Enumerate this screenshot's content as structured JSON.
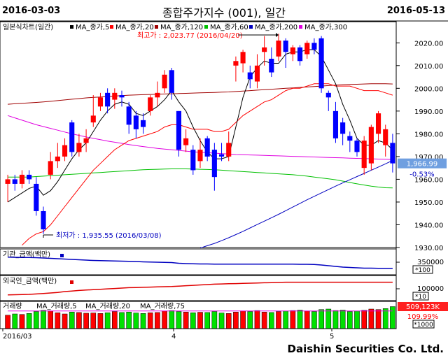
{
  "header": {
    "start_date": "2016-03-03",
    "end_date": "2016-05-13",
    "title": "종합주가지수 (001), 일간"
  },
  "legend": {
    "chart_name": "일본식차트(일간)",
    "items": [
      {
        "label": "MA_종가,5",
        "color": "#000000"
      },
      {
        "label": "MA_종가,20",
        "color": "#ff0000"
      },
      {
        "label": "MA_종가,120",
        "color": "#a00000"
      },
      {
        "label": "MA_종가,60",
        "color": "#00c000"
      },
      {
        "label": "MA_종가,200",
        "color": "#0000c0"
      },
      {
        "label": "MA_종가,300",
        "color": "#e000e0"
      }
    ]
  },
  "annotations": {
    "high": "최고가 : 2,023.77 (2016/04/20)",
    "low": "최저가 : 1,935.55 (2016/03/08)"
  },
  "price_panel": {
    "y_ticks": [
      "2020.00",
      "2010.00",
      "2000.00",
      "1990.00",
      "1980.00",
      "1970.00",
      "1960.00",
      "1950.00",
      "1940.00",
      "1930.00"
    ],
    "current_value": "1,966.99",
    "change_pct": "-0.53%"
  },
  "sub_panels": [
    {
      "title": "기관_금액(백만)",
      "tick": "350000",
      "unit": "*100",
      "line_color": "#0000c0"
    },
    {
      "title": "외국인_금액(백만)",
      "tick": "100000",
      "unit": "*10",
      "line_color": "#e00000"
    },
    {
      "title": "거래량",
      "legend": [
        "MA_거래량,5",
        "MA_거래량,20",
        "MA_거래량,75"
      ],
      "value": "509,123K",
      "pct": "109.99%",
      "unit": "*1000"
    }
  ],
  "x_axis": {
    "labels": [
      "2016/03",
      "4",
      "5"
    ]
  },
  "footer": {
    "company": "Daishin Securities Co. Ltd."
  },
  "colors": {
    "up": "#ff0000",
    "down": "#0000ff",
    "accent_box": "#6f9fe0"
  },
  "chart_data": {
    "type": "candlestick",
    "ylim": [
      1930,
      2025
    ],
    "candles": [
      [
        1958,
        1960,
        1950,
        1962
      ],
      [
        1960,
        1958,
        1955,
        1962
      ],
      [
        1958,
        1962,
        1956,
        1964
      ],
      [
        1962,
        1960,
        1958,
        1964
      ],
      [
        1958,
        1946,
        1944,
        1961
      ],
      [
        1946,
        1938,
        1936,
        1948
      ],
      [
        1962,
        1968,
        1960,
        1972
      ],
      [
        1968,
        1970,
        1965,
        1976
      ],
      [
        1970,
        1975,
        1968,
        1978
      ],
      [
        1985,
        1972,
        1970,
        1986
      ],
      [
        1972,
        1976,
        1970,
        1980
      ],
      [
        1976,
        1978,
        1972,
        1982
      ],
      [
        1985,
        1988,
        1983,
        1997
      ],
      [
        1992,
        1996,
        1990,
        1998
      ],
      [
        1998,
        1992,
        1989,
        2000
      ],
      [
        1995,
        1998,
        1991,
        2000
      ],
      [
        1997,
        1996,
        1992,
        1999
      ],
      [
        1992,
        1984,
        1980,
        1994
      ],
      [
        1988,
        1982,
        1978,
        1990
      ],
      [
        1986,
        1983,
        1980,
        1989
      ],
      [
        1990,
        1996,
        1988,
        1997
      ],
      [
        1996,
        1998,
        1992,
        2003
      ],
      [
        2000,
        2006,
        1998,
        2008
      ],
      [
        2008,
        1998,
        1995,
        2009
      ],
      [
        1990,
        1973,
        1970,
        1990
      ],
      [
        1975,
        1978,
        1972,
        1982
      ],
      [
        1973,
        1964,
        1962,
        1975
      ],
      [
        1968,
        1973,
        1965,
        1978
      ],
      [
        1978,
        1970,
        1968,
        1979
      ],
      [
        1973,
        1961,
        1955,
        1976
      ],
      [
        1971,
        1970,
        1968,
        1976
      ],
      [
        1970,
        1976,
        1968,
        1981
      ],
      [
        2010,
        2012,
        2003,
        2014
      ],
      [
        2011,
        2016,
        2007,
        2017
      ],
      [
        2007,
        2004,
        2000,
        2010
      ],
      [
        2003,
        2010,
        2000,
        2015
      ],
      [
        2016,
        2018,
        2010,
        2023
      ],
      [
        2013,
        2007,
        2005,
        2018
      ],
      [
        2014,
        2021,
        2012,
        2024
      ],
      [
        2021,
        2016,
        2009,
        2022
      ],
      [
        2015,
        2018,
        2012,
        2019
      ],
      [
        2018,
        2012,
        2010,
        2019
      ],
      [
        2015,
        2020,
        2013,
        2021
      ],
      [
        2020,
        2017,
        2015,
        2022
      ],
      [
        2022,
        2000,
        1998,
        2023
      ],
      [
        1998,
        1996,
        1990,
        1999
      ],
      [
        1990,
        1978,
        1976,
        1994
      ],
      [
        1985,
        1980,
        1975,
        1987
      ],
      [
        1979,
        1977,
        1972,
        1981
      ],
      [
        1977,
        1972,
        1970,
        1978
      ],
      [
        1965,
        1977,
        1962,
        1979
      ],
      [
        1967,
        1983,
        1964,
        1984
      ],
      [
        1980,
        1989,
        1976,
        1990
      ],
      [
        1975,
        1982,
        1970,
        1984
      ],
      [
        1976,
        1967,
        1963,
        1980
      ]
    ],
    "ma5": [
      1950,
      1952,
      1954,
      1956,
      1957,
      1953,
      1955,
      1959,
      1964,
      1969,
      1973,
      1976,
      1981,
      1986,
      1990,
      1993,
      1994,
      1993,
      1989,
      1988,
      1990,
      1992,
      1995,
      1999,
      1994,
      1990,
      1983,
      1977,
      1972,
      1969,
      1969,
      1970,
      1983,
      1996,
      2005,
      2009,
      2012,
      2011,
      2011,
      2015,
      2016,
      2016,
      2017,
      2017,
      2014,
      2008,
      2002,
      1993,
      1986,
      1978,
      1975,
      1975,
      1977,
      1976,
      1973
    ],
    "ma20": [
      1925,
      1928,
      1931,
      1934,
      1936,
      1937,
      1940,
      1944,
      1948,
      1952,
      1956,
      1960,
      1964,
      1967,
      1970,
      1973,
      1975,
      1977,
      1978,
      1979,
      1980,
      1981,
      1983,
      1984,
      1984,
      1983,
      1982,
      1982,
      1982,
      1981,
      1981,
      1982,
      1985,
      1988,
      1990,
      1992,
      1994,
      1995,
      1997,
      1999,
      2000,
      2000,
      2001,
      2002,
      2002,
      2002,
      2001,
      2001,
      2001,
      2000,
      1999,
      1999,
      1999,
      1998,
      1997
    ],
    "ma120": [
      1993,
      1993.2,
      1993.4,
      1993.6,
      1993.8,
      1994,
      1994.3,
      1994.6,
      1994.9,
      1995.2,
      1995.5,
      1995.8,
      1996,
      1996.2,
      1996.4,
      1996.6,
      1996.8,
      1997,
      1997.1,
      1997.2,
      1997.3,
      1997.4,
      1997.5,
      1997.6,
      1997.7,
      1997.8,
      1997.9,
      1998,
      1998.1,
      1998.2,
      1998.3,
      1998.4,
      1998.6,
      1998.8,
      1999,
      1999.2,
      1999.4,
      1999.6,
      1999.8,
      2000,
      2000.2,
      2000.4,
      2000.6,
      2000.8,
      2001,
      2001.2,
      2001.4,
      2001.6,
      2001.7,
      2001.8,
      2001.9,
      2002,
      2002,
      2002,
      2001.9
    ],
    "ma60": [
      1961,
      1961,
      1961,
      1961,
      1961.2,
      1961.4,
      1961.6,
      1961.8,
      1962,
      1962.2,
      1962.4,
      1962.6,
      1962.8,
      1963,
      1963.2,
      1963.4,
      1963.6,
      1963.8,
      1964,
      1964.2,
      1964.3,
      1964.4,
      1964.5,
      1964.6,
      1964.6,
      1964.6,
      1964.5,
      1964.4,
      1964.3,
      1964.2,
      1964,
      1963.8,
      1963.6,
      1963.4,
      1963.2,
      1963,
      1962.8,
      1962.6,
      1962.4,
      1962.2,
      1962,
      1961.7,
      1961.4,
      1961,
      1960.6,
      1960.2,
      1959.8,
      1959.2,
      1958.6,
      1958,
      1957.5,
      1957,
      1956.6,
      1956.3,
      1956.2
    ],
    "ma200": [
      1912,
      1912,
      1912,
      1912,
      1912,
      1912,
      1912,
      1912,
      1912,
      1912,
      1912,
      1912,
      1912,
      1912,
      1912,
      1912,
      1912,
      1912,
      1912,
      1912,
      1912,
      1912,
      1912,
      1912,
      1912,
      1912,
      1912,
      1929.8,
      1930.8,
      1931.8,
      1933,
      1934.3,
      1935.7,
      1937.1,
      1938.6,
      1940.1,
      1941.6,
      1943.1,
      1944.6,
      1946.2,
      1947.8,
      1949.4,
      1951,
      1952.5,
      1954,
      1955.5,
      1957,
      1958.4,
      1959.8,
      1961.2,
      1962.6,
      1964,
      1965.4,
      1966.8,
      1968.3
    ],
    "ma300": [
      1988,
      1987,
      1986,
      1985,
      1984,
      1983.2,
      1982.4,
      1981.6,
      1980.8,
      1980,
      1979.3,
      1978.6,
      1978,
      1977.4,
      1976.8,
      1976.3,
      1975.8,
      1975.3,
      1974.8,
      1974.4,
      1974,
      1973.6,
      1973.3,
      1973,
      1972.7,
      1972.4,
      1972.1,
      1971.9,
      1971.7,
      1971.5,
      1971.3,
      1971.1,
      1970.9,
      1970.8,
      1970.7,
      1970.6,
      1970.5,
      1970.4,
      1970.3,
      1970.2,
      1970.1,
      1970,
      1969.9,
      1969.8,
      1969.7,
      1969.6,
      1969.5,
      1969.4,
      1969.3,
      1969.2,
      1969.1,
      1969,
      1968.9,
      1968.8,
      1968.7
    ],
    "inst_line": [
      0.15,
      0.16,
      0.17,
      0.17,
      0.18,
      0.2,
      0.22,
      0.24,
      0.26,
      0.28,
      0.3,
      0.32,
      0.34,
      0.35,
      0.36,
      0.37,
      0.38,
      0.39,
      0.4,
      0.42,
      0.43,
      0.44,
      0.45,
      0.46,
      0.5,
      0.52,
      0.53,
      0.54,
      0.54,
      0.55,
      0.55,
      0.55,
      0.55,
      0.55,
      0.55,
      0.55,
      0.55,
      0.55,
      0.55,
      0.55,
      0.55,
      0.56,
      0.56,
      0.57,
      0.6,
      0.64,
      0.68,
      0.72,
      0.74,
      0.76,
      0.78,
      0.78,
      0.79,
      0.79,
      0.79
    ],
    "foreign_line": [
      0.85,
      0.84,
      0.83,
      0.82,
      0.8,
      0.78,
      0.75,
      0.72,
      0.68,
      0.65,
      0.62,
      0.6,
      0.58,
      0.56,
      0.54,
      0.52,
      0.5,
      0.48,
      0.47,
      0.46,
      0.45,
      0.44,
      0.43,
      0.42,
      0.4,
      0.38,
      0.36,
      0.34,
      0.32,
      0.3,
      0.29,
      0.28,
      0.27,
      0.26,
      0.25,
      0.24,
      0.23,
      0.22,
      0.21,
      0.2,
      0.2,
      0.2,
      0.2,
      0.2,
      0.2,
      0.2,
      0.2,
      0.2,
      0.2,
      0.2,
      0.2,
      0.2,
      0.2,
      0.2,
      0.2
    ],
    "volume": [
      0.55,
      0.6,
      0.58,
      0.62,
      0.7,
      0.75,
      0.72,
      0.65,
      0.6,
      0.68,
      0.66,
      0.63,
      0.64,
      0.62,
      0.65,
      0.7,
      0.66,
      0.68,
      0.64,
      0.62,
      0.65,
      0.66,
      0.72,
      0.74,
      0.7,
      0.68,
      0.65,
      0.67,
      0.66,
      0.7,
      0.64,
      0.62,
      0.68,
      0.72,
      0.7,
      0.74,
      0.68,
      0.66,
      0.7,
      0.72,
      0.74,
      0.76,
      0.72,
      0.7,
      0.78,
      0.8,
      0.74,
      0.76,
      0.7,
      0.72,
      0.75,
      0.8,
      0.78,
      0.82,
      0.9
    ],
    "volume_up": [
      1,
      0,
      1,
      0,
      0,
      0,
      1,
      1,
      1,
      0,
      1,
      1,
      1,
      1,
      0,
      1,
      0,
      0,
      0,
      0,
      1,
      1,
      1,
      0,
      0,
      1,
      0,
      1,
      0,
      0,
      0,
      1,
      1,
      1,
      0,
      1,
      1,
      0,
      1,
      0,
      1,
      0,
      1,
      0,
      0,
      0,
      0,
      0,
      0,
      0,
      1,
      1,
      1,
      0,
      0
    ]
  }
}
